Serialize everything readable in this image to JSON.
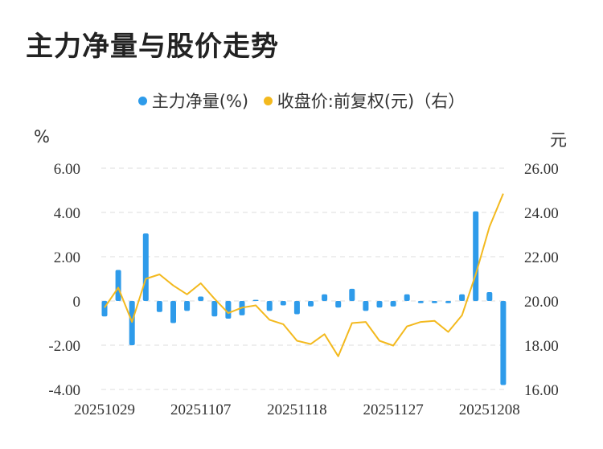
{
  "chart_data": {
    "type": "bar+line",
    "title": "主力净量与股价走势",
    "legend": {
      "position": "top",
      "items": [
        {
          "label": "主力净量(%)",
          "color": "#2e9bea"
        },
        {
          "label": "收盘价:前复权(元)（右）",
          "color": "#f3b91e"
        }
      ]
    },
    "left_axis": {
      "unit": "%",
      "ticks": [
        "6.00",
        "4.00",
        "2.00",
        "0",
        "-2.00",
        "-4.00"
      ],
      "ylim": [
        -4,
        6
      ]
    },
    "right_axis": {
      "unit": "元",
      "ticks": [
        "26.00",
        "24.00",
        "22.00",
        "20.00",
        "18.00",
        "16.00"
      ],
      "ylim": [
        16,
        26
      ]
    },
    "x_tick_labels": [
      "20251029",
      "20251107",
      "20251118",
      "20251127",
      "20251208"
    ],
    "x_tick_positions": [
      0,
      7,
      14,
      21,
      28
    ],
    "grid": true,
    "series": [
      {
        "name": "主力净量(%)",
        "kind": "bar",
        "axis": "left",
        "color": "#2e9bea",
        "values": [
          -0.7,
          1.4,
          -2.0,
          3.05,
          -0.5,
          -1.0,
          -0.45,
          0.2,
          -0.7,
          -0.8,
          -0.65,
          0.05,
          -0.45,
          -0.2,
          -0.6,
          -0.25,
          0.3,
          -0.3,
          0.55,
          -0.45,
          -0.3,
          -0.25,
          0.3,
          -0.1,
          -0.1,
          -0.1,
          0.3,
          4.05,
          0.4,
          -3.8
        ]
      },
      {
        "name": "收盘价:前复权(元)（右）",
        "kind": "line",
        "axis": "right",
        "color": "#f3b91e",
        "values": [
          19.7,
          20.6,
          19.05,
          21.0,
          21.2,
          20.7,
          20.3,
          20.8,
          20.1,
          19.45,
          19.7,
          19.8,
          19.15,
          18.95,
          18.2,
          18.05,
          18.5,
          17.5,
          19.0,
          19.05,
          18.2,
          17.98,
          18.85,
          19.05,
          19.1,
          18.6,
          19.35,
          21.2,
          23.35,
          24.85
        ]
      }
    ]
  }
}
